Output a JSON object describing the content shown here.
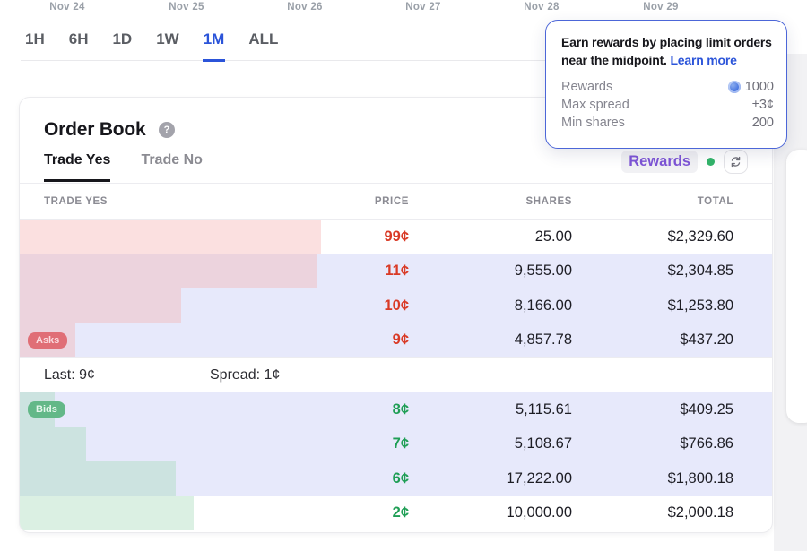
{
  "dates": [
    "Nov 24",
    "Nov 25",
    "Nov 26",
    "Nov 27",
    "Nov 28",
    "Nov 29"
  ],
  "time_ranges": {
    "options": [
      "1H",
      "6H",
      "1D",
      "1W",
      "1M",
      "ALL"
    ],
    "selected": "1M"
  },
  "tooltip": {
    "message": "Earn rewards by placing limit orders near the midpoint.",
    "link": "Learn more",
    "stats": [
      {
        "label": "Rewards",
        "value": "1000",
        "icon": "reward-coin-icon"
      },
      {
        "label": "Max spread",
        "value": "±3¢"
      },
      {
        "label": "Min shares",
        "value": "200"
      }
    ]
  },
  "order_book": {
    "title": "Order Book",
    "help_icon": "?",
    "tabs": [
      {
        "label": "Trade Yes",
        "active": true
      },
      {
        "label": "Trade No",
        "active": false
      }
    ],
    "rewards_label": "Rewards",
    "columns": [
      "TRADE YES",
      "PRICE",
      "SHARES",
      "TOTAL"
    ],
    "asks_badge": "Asks",
    "bids_badge": "Bids",
    "asks": [
      {
        "price": "99¢",
        "shares": "25.00",
        "total": "$2,329.60",
        "bar_pct": 40.0
      },
      {
        "price": "11¢",
        "shares": "9,555.00",
        "total": "$2,304.85",
        "bar_pct": 39.5
      },
      {
        "price": "10¢",
        "shares": "8,166.00",
        "total": "$1,253.80",
        "bar_pct": 21.5
      },
      {
        "price": "9¢",
        "shares": "4,857.78",
        "total": "$437.20",
        "bar_pct": 7.4
      }
    ],
    "separator": {
      "last": "Last: 9¢",
      "spread": "Spread: 1¢"
    },
    "bids": [
      {
        "price": "8¢",
        "shares": "5,115.61",
        "total": "$409.25",
        "bar_pct": 4.6
      },
      {
        "price": "7¢",
        "shares": "5,108.67",
        "total": "$766.86",
        "bar_pct": 8.8
      },
      {
        "price": "6¢",
        "shares": "17,222.00",
        "total": "$1,800.18",
        "bar_pct": 20.7
      },
      {
        "price": "2¢",
        "shares": "10,000.00",
        "total": "$2,000.18",
        "bar_pct": 23.1
      }
    ]
  },
  "colors": {
    "accent": "#2b54d9",
    "purple": "#7e55d6",
    "ask": "#d93a26",
    "bid": "#1f9e55",
    "zone": "#e7e9fb",
    "askbar": "rgba(246,178,178,0.40)",
    "bidbar": "rgba(164,218,186,0.40)"
  }
}
